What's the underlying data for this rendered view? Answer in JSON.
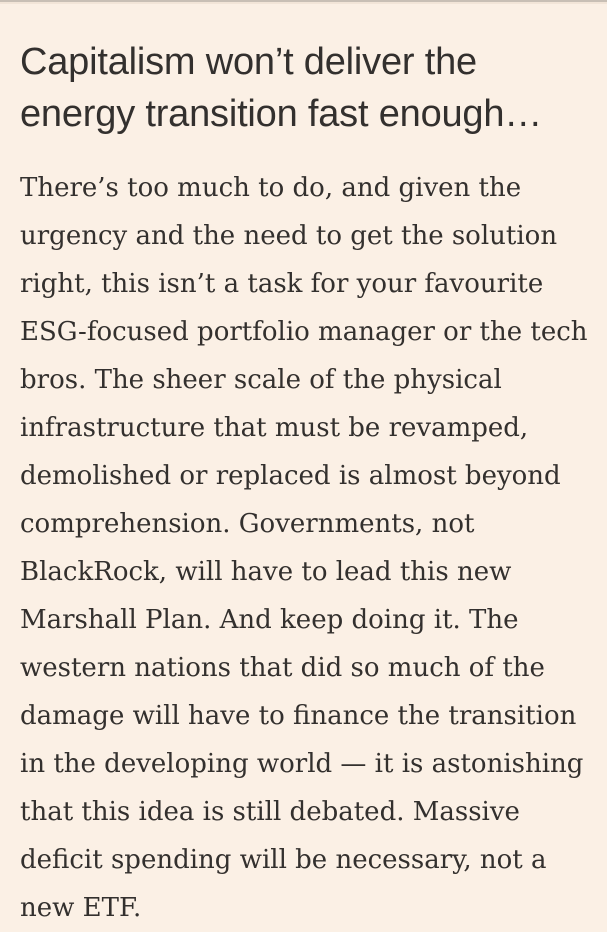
{
  "page": {
    "background_color": "#FBF0E5",
    "top_rule_dark_color": "#C8BFB5",
    "top_rule_light_color": "#F2E5D8",
    "text_color": "#33302E"
  },
  "article": {
    "heading": "Capitalism won’t deliver the energy transition fast enough…",
    "body": "There’s too much to do, and given the urgency and the need to get the solution right, this isn’t a task for your favourite ESG-focused portfolio manager or the tech bros. The sheer scale of the physical infrastructure that must be revamped, demolished or replaced is almost beyond comprehension. Governments, not BlackRock, will have to lead this new Marshall Plan. And keep doing it. The western nations that did so much of the damage will have to finance the transition in the developing world — it is astonishing that this idea is still debated. Massive deficit spending will be necessary, not a new ETF."
  }
}
